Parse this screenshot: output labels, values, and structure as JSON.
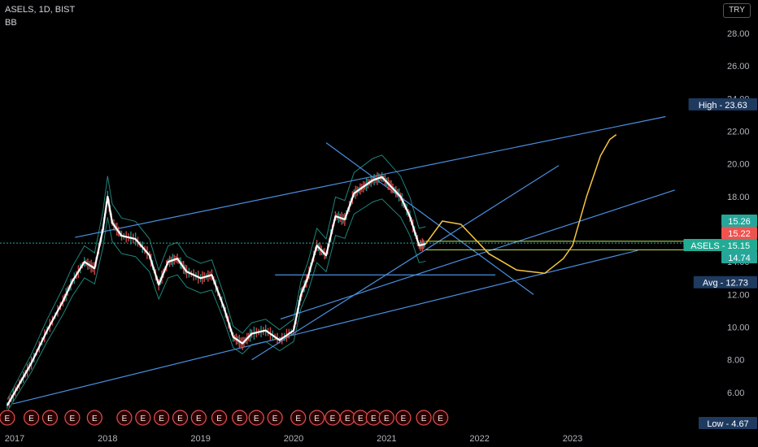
{
  "header": {
    "symbol_line": "ASELS, 1D, BIST",
    "indicator": "BB"
  },
  "currency_button": "TRY",
  "chart_data": {
    "type": "line",
    "title": "ASELS, 1D, BIST",
    "xlabel": "",
    "ylabel": "",
    "ylim": [
      4.4,
      28.8
    ],
    "grid": false,
    "y_ticks": [
      "28.00",
      "26.00",
      "24.00",
      "22.00",
      "20.00",
      "18.00",
      "16.00",
      "14.00",
      "12.00",
      "10.00",
      "8.00",
      "6.00"
    ],
    "x_ticks": [
      "2017",
      "2018",
      "2019",
      "2020",
      "2021",
      "2022",
      "2023"
    ],
    "x_ticks_pos": [
      2017.0,
      2018.0,
      2019.0,
      2020.0,
      2021.0,
      2022.0,
      2023.0
    ],
    "series": [
      {
        "name": "",
        "x": [
          2016.92,
          2017.05,
          2017.18,
          2017.35,
          2017.52,
          2017.62,
          2017.75,
          2017.86,
          2017.95,
          2018.0,
          2018.05,
          2018.15,
          2018.3,
          2018.45,
          2018.55,
          2018.65,
          2018.75,
          2018.85,
          2019.0,
          2019.12,
          2019.25,
          2019.35,
          2019.45,
          2019.55,
          2019.7,
          2019.85,
          2020.0,
          2020.08,
          2020.15,
          2020.25,
          2020.35,
          2020.45,
          2020.55,
          2020.65,
          2020.75,
          2020.85,
          2020.95,
          2021.05,
          2021.15,
          2021.25,
          2021.35,
          2021.42
        ],
        "y": [
          5.2,
          6.5,
          7.8,
          9.8,
          11.6,
          12.8,
          14.0,
          13.6,
          16.0,
          18.0,
          16.4,
          15.6,
          15.4,
          14.4,
          12.6,
          14.0,
          14.2,
          13.4,
          13.0,
          13.2,
          11.2,
          9.4,
          9.0,
          9.6,
          9.8,
          9.2,
          9.8,
          12.0,
          13.0,
          15.0,
          14.4,
          16.8,
          16.6,
          18.2,
          18.6,
          19.0,
          19.2,
          18.6,
          18.0,
          16.8,
          15.0,
          15.1
        ]
      }
    ],
    "drawings": [
      {
        "x": [
          2016.98,
          2023.7
        ],
        "y": [
          5.3,
          14.7
        ]
      },
      {
        "x": [
          2017.65,
          2024.0
        ],
        "y": [
          15.5,
          22.9
        ]
      },
      {
        "x": [
          2019.55,
          2022.85
        ],
        "y": [
          8.0,
          19.9
        ]
      },
      {
        "x": [
          2019.8,
          2022.17
        ],
        "y": [
          13.2,
          13.2
        ]
      },
      {
        "x": [
          2019.86,
          2024.1
        ],
        "y": [
          10.5,
          18.4
        ]
      },
      {
        "x": [
          2020.35,
          2022.58
        ],
        "y": [
          21.3,
          12.0
        ]
      }
    ],
    "horizontal_levels": [
      15.26,
      14.74,
      15.15
    ],
    "projection": {
      "x": [
        2021.42,
        2021.6,
        2021.8,
        2022.1,
        2022.4,
        2022.7,
        2022.9,
        2023.0,
        2023.15,
        2023.3,
        2023.4,
        2023.47
      ],
      "y": [
        15.1,
        16.5,
        16.3,
        14.5,
        13.5,
        13.3,
        14.2,
        15.0,
        18.0,
        20.5,
        21.5,
        21.8
      ]
    },
    "earnings_markers": {
      "label": "E",
      "x": [
        2016.92,
        2017.18,
        2017.38,
        2017.62,
        2017.86,
        2018.18,
        2018.38,
        2018.58,
        2018.78,
        2018.98,
        2019.2,
        2019.42,
        2019.6,
        2019.8,
        2020.05,
        2020.25,
        2020.42,
        2020.58,
        2020.72,
        2020.86,
        2021.0,
        2021.18,
        2021.4,
        2021.58
      ]
    },
    "price_labels": [
      {
        "label": "High",
        "value": "23.63",
        "color": "#1e3a5f"
      },
      {
        "label": "",
        "value": "15.26",
        "color": "#26a69a"
      },
      {
        "label": "",
        "value": "15.22",
        "color": "#ef5350"
      },
      {
        "label": "ASELS",
        "value": "15.15",
        "color": "#22ab94"
      },
      {
        "label": "",
        "value": "14.74",
        "color": "#26a69a"
      },
      {
        "label": "Avg",
        "value": "12.73",
        "color": "#1e3a5f"
      },
      {
        "label": "Low",
        "value": "4.67",
        "color": "#1e3a5f"
      }
    ]
  }
}
